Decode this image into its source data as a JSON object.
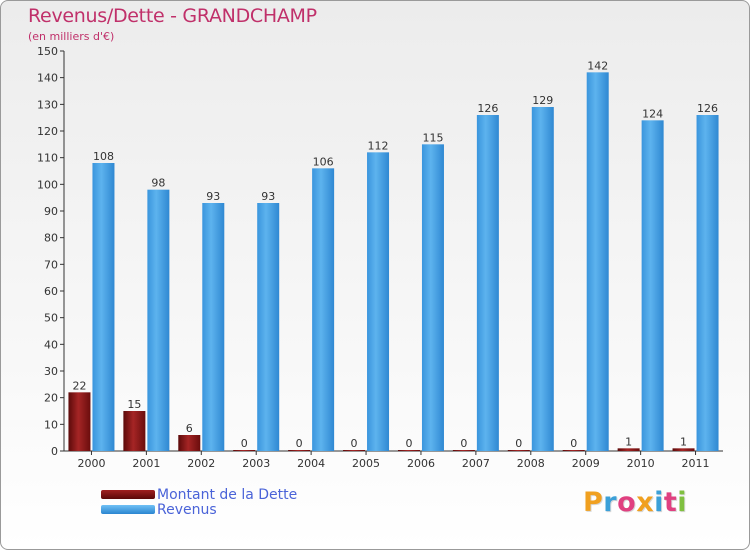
{
  "header": {
    "title": "Revenus/Dette - GRANDCHAMP",
    "subtitle": "(en milliers d'€)"
  },
  "legend": {
    "items": [
      {
        "label": "Montant de la Dette",
        "color": "#7a1010"
      },
      {
        "label": "Revenus",
        "color": "#4aa3e8"
      }
    ]
  },
  "logo": {
    "text": "Proxiti",
    "letters": [
      "P",
      "r",
      "o",
      "x",
      "i",
      "t",
      "i"
    ],
    "colors": [
      "#f0a020",
      "#3ba0d8",
      "#e04080",
      "#f0a020",
      "#3ba0d8",
      "#e04080",
      "#80c040"
    ]
  },
  "chart_data": {
    "type": "bar",
    "title": "Revenus/Dette - GRANDCHAMP",
    "subtitle": "(en milliers d'€)",
    "xlabel": "",
    "ylabel": "",
    "categories": [
      "2000",
      "2001",
      "2002",
      "2003",
      "2004",
      "2005",
      "2006",
      "2007",
      "2008",
      "2009",
      "2010",
      "2011"
    ],
    "series": [
      {
        "name": "Montant de la Dette",
        "color": "#7a1010",
        "values": [
          22,
          15,
          6,
          0,
          0,
          0,
          0,
          0,
          0,
          0,
          1,
          1
        ]
      },
      {
        "name": "Revenus",
        "color": "#4aa3e8",
        "values": [
          108,
          98,
          93,
          93,
          106,
          112,
          115,
          126,
          129,
          142,
          124,
          126
        ]
      }
    ],
    "ylim": [
      0,
      150
    ],
    "yticks": [
      0,
      10,
      20,
      30,
      40,
      50,
      60,
      70,
      80,
      90,
      100,
      110,
      120,
      130,
      140,
      150
    ],
    "grid": false,
    "legend_position": "bottom-left"
  }
}
